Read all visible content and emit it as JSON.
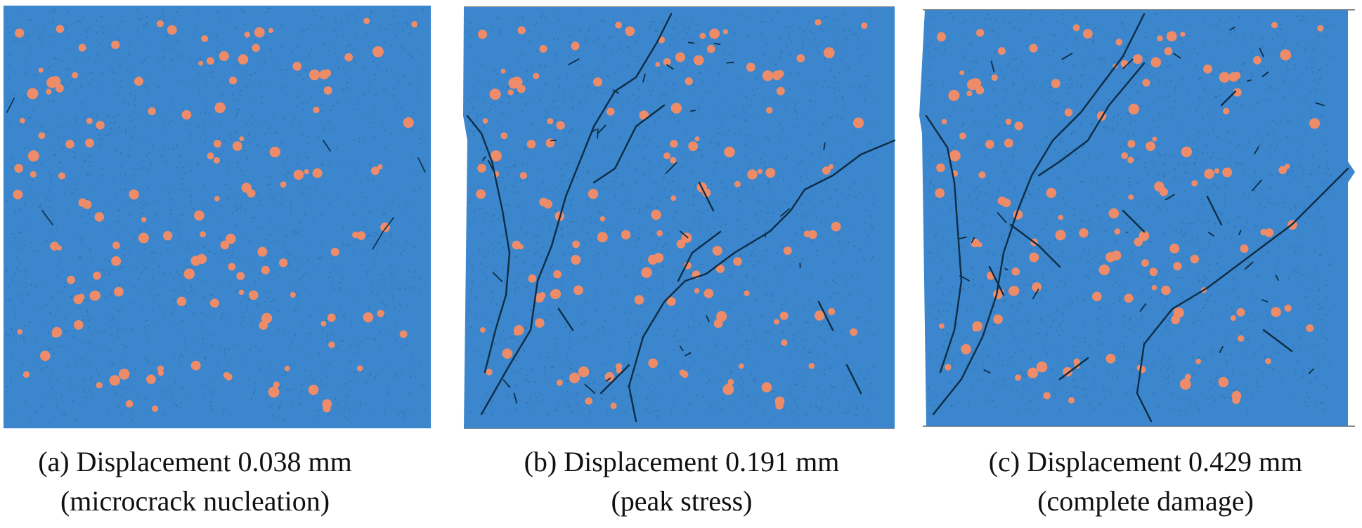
{
  "colors": {
    "matrix": "#3b86cc",
    "matrix_dark": "#2a6aa8",
    "aggregate": "#ee8c6a",
    "crack": "#0e2c44",
    "frame": "#8a8a8a"
  },
  "panels": [
    {
      "id": "a",
      "caption_line1": "(a) Displacement 0.038 mm",
      "caption_line2": "(microcrack nucleation)",
      "stage": "microcrack nucleation",
      "displacement_mm": 0.038
    },
    {
      "id": "b",
      "caption_line1": "(b) Displacement 0.191 mm",
      "caption_line2": "(peak stress)",
      "stage": "peak stress",
      "displacement_mm": 0.191
    },
    {
      "id": "c",
      "caption_line1": "(c) Displacement 0.429 mm",
      "caption_line2": "(complete damage)",
      "stage": "complete damage",
      "displacement_mm": 0.429
    }
  ]
}
